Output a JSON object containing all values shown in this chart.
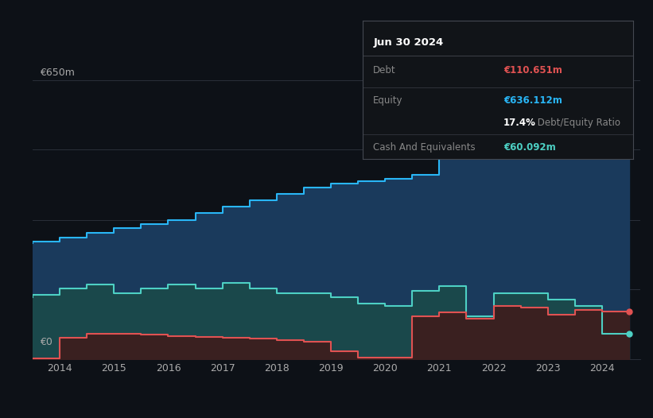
{
  "background_color": "#0d1117",
  "plot_bg_color": "#0d1117",
  "title_box": {
    "date": "Jun 30 2024",
    "debt_label": "Debt",
    "debt_value": "€110.651m",
    "debt_color": "#e05252",
    "equity_label": "Equity",
    "equity_value": "€636.112m",
    "equity_color": "#29b6f6",
    "ratio_value": "17.4%",
    "ratio_label": " Debt/Equity Ratio",
    "cash_label": "Cash And Equivalents",
    "cash_value": "€60.092m",
    "cash_color": "#4dd0c4"
  },
  "ylim": [
    0,
    700
  ],
  "ylabel_top": "€650m",
  "ylabel_bottom": "€0",
  "grid_color": "#2a2f3a",
  "years": [
    2013.5,
    2014,
    2014.5,
    2015,
    2015.5,
    2016,
    2016.5,
    2017,
    2017.5,
    2018,
    2018.5,
    2019,
    2019.5,
    2020,
    2020.5,
    2021,
    2021.5,
    2022,
    2022.5,
    2023,
    2023.5,
    2024,
    2024.5
  ],
  "equity": [
    270,
    275,
    283,
    295,
    305,
    315,
    325,
    340,
    355,
    370,
    385,
    400,
    410,
    415,
    420,
    430,
    480,
    530,
    560,
    580,
    590,
    630,
    636
  ],
  "cash": [
    145,
    150,
    165,
    175,
    155,
    165,
    175,
    165,
    178,
    165,
    155,
    155,
    145,
    130,
    125,
    160,
    170,
    100,
    155,
    155,
    140,
    125,
    60
  ],
  "debt": [
    2,
    2,
    50,
    60,
    60,
    58,
    55,
    52,
    50,
    48,
    45,
    42,
    20,
    5,
    5,
    100,
    110,
    95,
    125,
    120,
    105,
    115,
    111
  ],
  "equity_color": "#29b6f6",
  "equity_fill_color": "#1a3a5c",
  "cash_color": "#4dd0c4",
  "cash_fill_color": "#1a4a4a",
  "debt_color": "#e05252",
  "debt_fill_color": "#3a2020",
  "xlim": [
    2013.5,
    2024.7
  ],
  "xticks": [
    2014,
    2015,
    2016,
    2017,
    2018,
    2019,
    2020,
    2021,
    2022,
    2023,
    2024
  ],
  "legend_items": [
    {
      "label": "Debt",
      "color": "#e05252"
    },
    {
      "label": "Equity",
      "color": "#29b6f6"
    },
    {
      "label": "Cash And Equivalents",
      "color": "#4dd0c4"
    }
  ]
}
